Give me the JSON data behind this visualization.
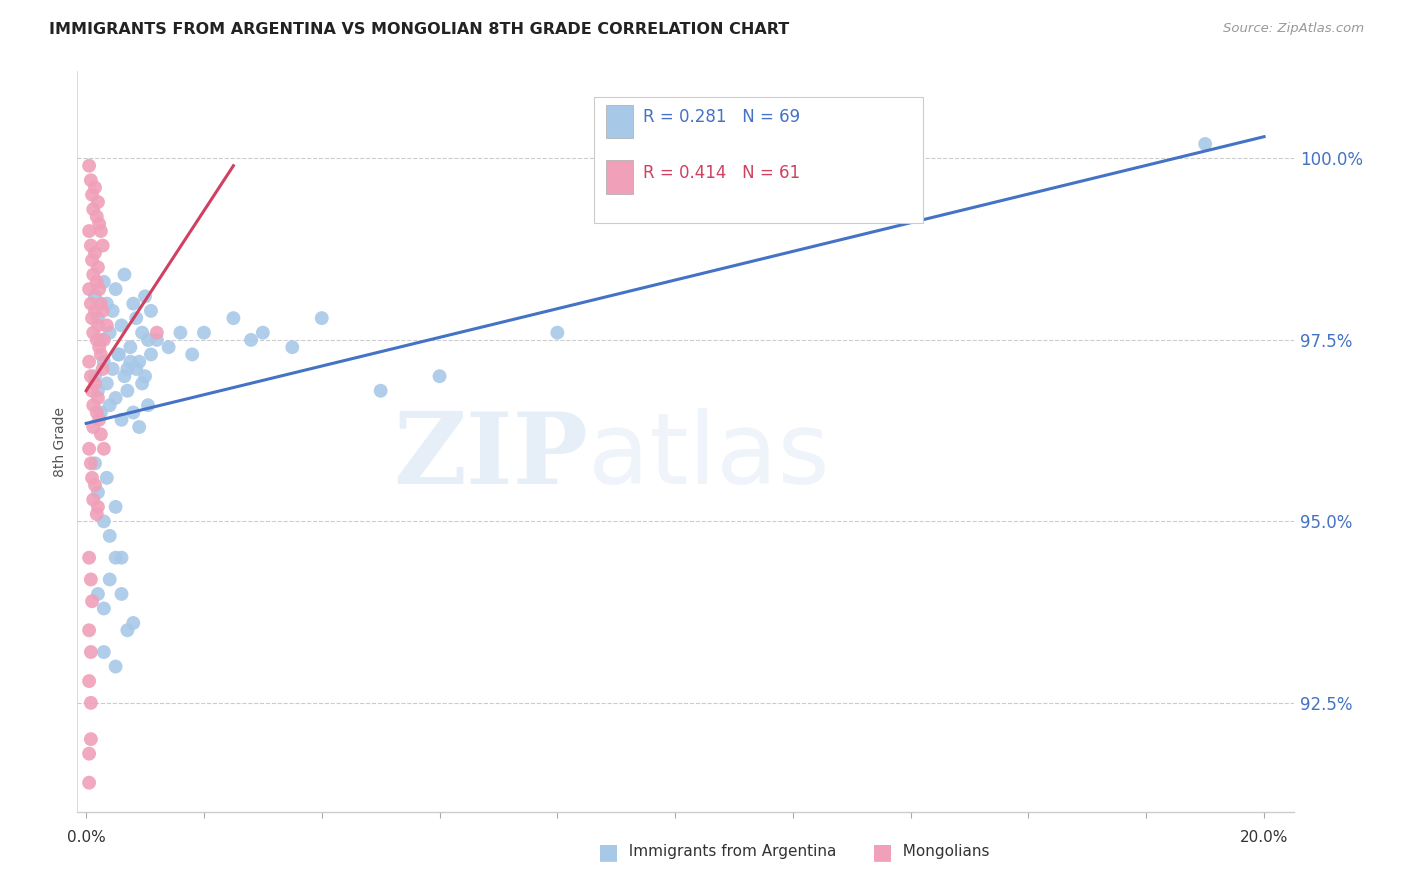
{
  "title": "IMMIGRANTS FROM ARGENTINA VS MONGOLIAN 8TH GRADE CORRELATION CHART",
  "source": "Source: ZipAtlas.com",
  "ylabel": "8th Grade",
  "yaxis_labels": [
    "100.0%",
    "97.5%",
    "95.0%",
    "92.5%"
  ],
  "yticks": [
    100.0,
    97.5,
    95.0,
    92.5
  ],
  "ymin": 91.0,
  "ymax": 101.2,
  "xmin": -0.15,
  "xmax": 20.5,
  "legend_blue_R": "0.281",
  "legend_blue_N": "69",
  "legend_pink_R": "0.414",
  "legend_pink_N": "61",
  "label_argentina": "Immigrants from Argentina",
  "label_mongolians": "Mongolians",
  "color_blue": "#A8C8E8",
  "color_pink": "#F0A0B8",
  "color_line_blue": "#4472C4",
  "color_line_pink": "#D04060",
  "color_axis_right": "#4472C4",
  "watermark_zip": "ZIP",
  "watermark_atlas": "atlas",
  "blue_line_x0": 0.0,
  "blue_line_y0": 96.35,
  "blue_line_x1": 20.0,
  "blue_line_y1": 100.3,
  "pink_line_x0": 0.0,
  "pink_line_y0": 96.8,
  "pink_line_x1": 2.5,
  "pink_line_y1": 99.9,
  "blue_points": [
    [
      0.15,
      98.1
    ],
    [
      0.2,
      97.8
    ],
    [
      0.25,
      97.5
    ],
    [
      0.3,
      98.3
    ],
    [
      0.35,
      98.0
    ],
    [
      0.4,
      97.6
    ],
    [
      0.45,
      97.9
    ],
    [
      0.5,
      98.2
    ],
    [
      0.55,
      97.3
    ],
    [
      0.6,
      97.7
    ],
    [
      0.65,
      98.4
    ],
    [
      0.7,
      97.1
    ],
    [
      0.75,
      97.4
    ],
    [
      0.8,
      98.0
    ],
    [
      0.85,
      97.8
    ],
    [
      0.9,
      97.2
    ],
    [
      0.95,
      97.6
    ],
    [
      1.0,
      98.1
    ],
    [
      1.05,
      97.5
    ],
    [
      1.1,
      97.9
    ],
    [
      0.15,
      97.0
    ],
    [
      0.2,
      96.8
    ],
    [
      0.25,
      96.5
    ],
    [
      0.3,
      97.2
    ],
    [
      0.35,
      96.9
    ],
    [
      0.4,
      96.6
    ],
    [
      0.45,
      97.1
    ],
    [
      0.5,
      96.7
    ],
    [
      0.55,
      97.3
    ],
    [
      0.6,
      96.4
    ],
    [
      0.65,
      97.0
    ],
    [
      0.7,
      96.8
    ],
    [
      0.75,
      97.2
    ],
    [
      0.8,
      96.5
    ],
    [
      0.85,
      97.1
    ],
    [
      0.9,
      96.3
    ],
    [
      0.95,
      96.9
    ],
    [
      1.0,
      97.0
    ],
    [
      1.05,
      96.6
    ],
    [
      1.1,
      97.3
    ],
    [
      1.2,
      97.5
    ],
    [
      1.4,
      97.4
    ],
    [
      1.6,
      97.6
    ],
    [
      1.8,
      97.3
    ],
    [
      2.0,
      97.6
    ],
    [
      2.5,
      97.8
    ],
    [
      2.8,
      97.5
    ],
    [
      3.0,
      97.6
    ],
    [
      3.5,
      97.4
    ],
    [
      4.0,
      97.8
    ],
    [
      0.15,
      95.8
    ],
    [
      0.2,
      95.4
    ],
    [
      0.3,
      95.0
    ],
    [
      0.35,
      95.6
    ],
    [
      0.4,
      94.8
    ],
    [
      0.5,
      95.2
    ],
    [
      0.6,
      94.5
    ],
    [
      0.2,
      94.0
    ],
    [
      0.3,
      93.8
    ],
    [
      0.4,
      94.2
    ],
    [
      0.5,
      94.5
    ],
    [
      0.6,
      94.0
    ],
    [
      0.7,
      93.5
    ],
    [
      0.3,
      93.2
    ],
    [
      0.5,
      93.0
    ],
    [
      0.8,
      93.6
    ],
    [
      8.0,
      97.6
    ],
    [
      19.0,
      100.2
    ],
    [
      5.0,
      96.8
    ],
    [
      6.0,
      97.0
    ]
  ],
  "pink_points": [
    [
      0.05,
      99.9
    ],
    [
      0.08,
      99.7
    ],
    [
      0.1,
      99.5
    ],
    [
      0.12,
      99.3
    ],
    [
      0.15,
      99.6
    ],
    [
      0.18,
      99.2
    ],
    [
      0.2,
      99.4
    ],
    [
      0.22,
      99.1
    ],
    [
      0.25,
      99.0
    ],
    [
      0.28,
      98.8
    ],
    [
      0.05,
      99.0
    ],
    [
      0.08,
      98.8
    ],
    [
      0.1,
      98.6
    ],
    [
      0.12,
      98.4
    ],
    [
      0.15,
      98.7
    ],
    [
      0.18,
      98.3
    ],
    [
      0.2,
      98.5
    ],
    [
      0.22,
      98.2
    ],
    [
      0.25,
      98.0
    ],
    [
      0.28,
      97.9
    ],
    [
      0.05,
      98.2
    ],
    [
      0.08,
      98.0
    ],
    [
      0.1,
      97.8
    ],
    [
      0.12,
      97.6
    ],
    [
      0.15,
      97.9
    ],
    [
      0.18,
      97.5
    ],
    [
      0.2,
      97.7
    ],
    [
      0.22,
      97.4
    ],
    [
      0.25,
      97.3
    ],
    [
      0.28,
      97.1
    ],
    [
      0.05,
      97.2
    ],
    [
      0.08,
      97.0
    ],
    [
      0.1,
      96.8
    ],
    [
      0.12,
      96.6
    ],
    [
      0.15,
      96.9
    ],
    [
      0.18,
      96.5
    ],
    [
      0.2,
      96.7
    ],
    [
      0.22,
      96.4
    ],
    [
      0.25,
      96.2
    ],
    [
      0.3,
      96.0
    ],
    [
      0.05,
      96.0
    ],
    [
      0.08,
      95.8
    ],
    [
      0.1,
      95.6
    ],
    [
      0.12,
      95.3
    ],
    [
      0.15,
      95.5
    ],
    [
      0.18,
      95.1
    ],
    [
      0.2,
      95.2
    ],
    [
      0.05,
      94.5
    ],
    [
      0.08,
      94.2
    ],
    [
      0.1,
      93.9
    ],
    [
      0.05,
      93.5
    ],
    [
      0.08,
      93.2
    ],
    [
      0.05,
      92.8
    ],
    [
      0.08,
      92.5
    ],
    [
      0.3,
      97.5
    ],
    [
      0.35,
      97.7
    ],
    [
      0.12,
      96.3
    ],
    [
      0.05,
      91.8
    ],
    [
      0.08,
      92.0
    ],
    [
      0.05,
      91.4
    ],
    [
      1.2,
      97.6
    ]
  ]
}
